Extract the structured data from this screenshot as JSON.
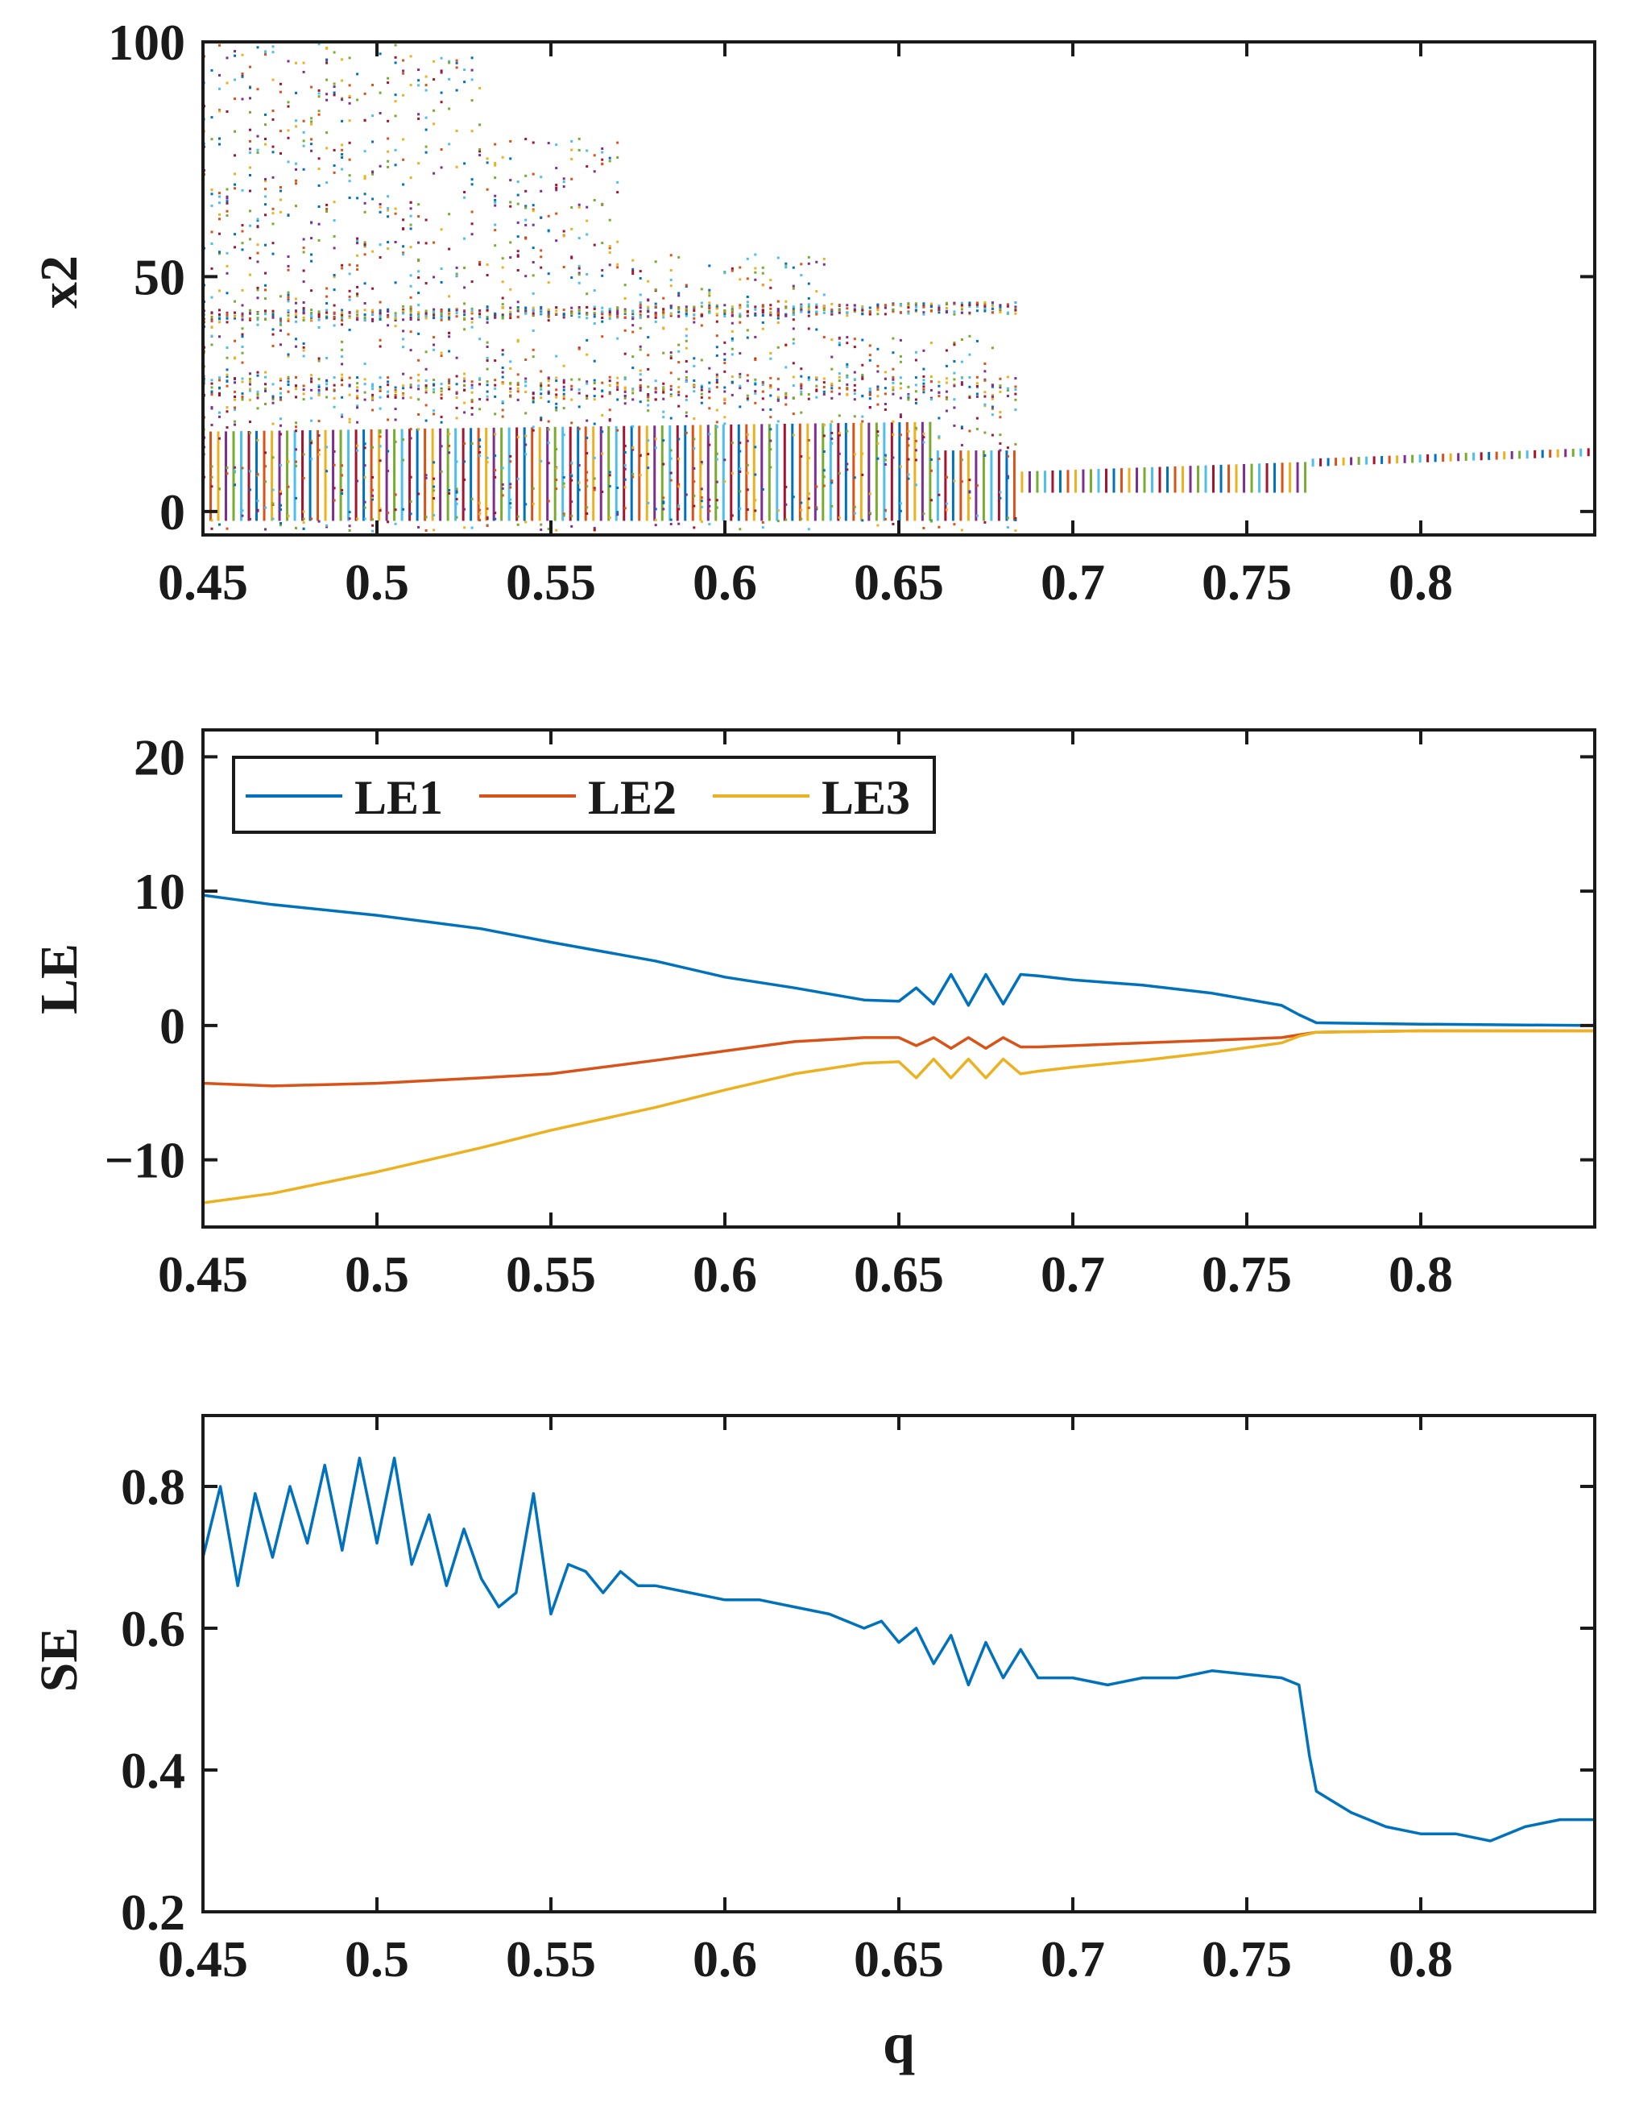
{
  "figure": {
    "xlabel": "q"
  },
  "chart_data": [
    {
      "type": "scatter",
      "title": "",
      "xlabel": "",
      "ylabel": "x2",
      "xlim": [
        0.45,
        0.85
      ],
      "ylim": [
        -5,
        100
      ],
      "xticks": [
        0.45,
        0.5,
        0.55,
        0.6,
        0.65,
        0.7,
        0.75,
        0.8
      ],
      "xtick_labels": [
        "0.45",
        "0.5",
        "0.55",
        "0.6",
        "0.65",
        "0.7",
        "0.75",
        "0.8"
      ],
      "yticks": [
        0,
        50,
        100
      ],
      "ytick_labels": [
        "0",
        "50",
        "100"
      ],
      "grid": false,
      "description_regions": [
        {
          "q_range": [
            0.45,
            0.53
          ],
          "x2_range": [
            -5,
            100
          ],
          "density": "sparse-to-dense chaotic"
        },
        {
          "q_range": [
            0.45,
            0.685
          ],
          "x2_range": [
            -5,
            43
          ],
          "density": "dense chaotic"
        },
        {
          "q_range": [
            0.685,
            0.767
          ],
          "x2_range": [
            4,
            9
          ],
          "density": "periodic band"
        },
        {
          "q_range": [
            0.767,
            0.85
          ],
          "x2_range": [
            10,
            13
          ],
          "density": "periodic band"
        }
      ],
      "series_colors": [
        "#0072BD",
        "#D95319",
        "#EDB120",
        "#7E2F8E",
        "#77AC30",
        "#4DBEEE",
        "#A2142F"
      ]
    },
    {
      "type": "line",
      "title": "",
      "xlabel": "",
      "ylabel": "LE",
      "xlim": [
        0.45,
        0.85
      ],
      "ylim": [
        -15,
        22
      ],
      "xticks": [
        0.45,
        0.5,
        0.55,
        0.6,
        0.65,
        0.7,
        0.75,
        0.8
      ],
      "xtick_labels": [
        "0.45",
        "0.5",
        "0.55",
        "0.6",
        "0.65",
        "0.7",
        "0.75",
        "0.8"
      ],
      "yticks": [
        -10,
        0,
        10,
        20
      ],
      "ytick_labels": [
        "−10",
        "0",
        "10",
        "20"
      ],
      "grid": false,
      "legend": {
        "placement": "top-left",
        "entries": [
          "LE1",
          "LE2",
          "LE3"
        ]
      },
      "x": [
        0.45,
        0.47,
        0.5,
        0.53,
        0.55,
        0.58,
        0.6,
        0.62,
        0.64,
        0.65,
        0.655,
        0.66,
        0.665,
        0.67,
        0.675,
        0.68,
        0.685,
        0.69,
        0.7,
        0.72,
        0.74,
        0.76,
        0.765,
        0.77,
        0.8,
        0.85
      ],
      "series": [
        {
          "name": "LE1",
          "color": "#0072BD",
          "values": [
            9.7,
            9.0,
            8.2,
            7.2,
            6.2,
            4.8,
            3.6,
            2.8,
            1.9,
            1.8,
            2.8,
            1.6,
            3.8,
            1.5,
            3.8,
            1.6,
            3.8,
            3.7,
            3.4,
            3.0,
            2.4,
            1.5,
            0.8,
            0.2,
            0.1,
            0.0
          ]
        },
        {
          "name": "LE2",
          "color": "#D95319",
          "values": [
            -4.3,
            -4.5,
            -4.3,
            -3.9,
            -3.6,
            -2.6,
            -1.9,
            -1.2,
            -0.9,
            -0.9,
            -1.5,
            -0.9,
            -1.7,
            -0.9,
            -1.7,
            -0.9,
            -1.6,
            -1.6,
            -1.5,
            -1.3,
            -1.1,
            -0.9,
            -0.7,
            -0.5,
            -0.4,
            -0.4
          ]
        },
        {
          "name": "LE3",
          "color": "#EDB120",
          "values": [
            -13.2,
            -12.5,
            -10.9,
            -9.1,
            -7.8,
            -6.1,
            -4.8,
            -3.6,
            -2.8,
            -2.7,
            -3.9,
            -2.5,
            -3.9,
            -2.5,
            -3.9,
            -2.5,
            -3.6,
            -3.4,
            -3.1,
            -2.6,
            -2.0,
            -1.3,
            -0.8,
            -0.5,
            -0.4,
            -0.4
          ]
        }
      ]
    },
    {
      "type": "line",
      "title": "",
      "xlabel": "q",
      "ylabel": "SE",
      "xlim": [
        0.45,
        0.85
      ],
      "ylim": [
        0.2,
        0.9
      ],
      "xticks": [
        0.45,
        0.5,
        0.55,
        0.6,
        0.65,
        0.7,
        0.75,
        0.8
      ],
      "xtick_labels": [
        "0.45",
        "0.5",
        "0.55",
        "0.6",
        "0.65",
        "0.7",
        "0.75",
        "0.8"
      ],
      "yticks": [
        0.2,
        0.4,
        0.6,
        0.8
      ],
      "ytick_labels": [
        "0.2",
        "0.4",
        "0.6",
        "0.8"
      ],
      "grid": false,
      "series": [
        {
          "name": "SE",
          "color": "#0072BD",
          "x": [
            0.45,
            0.455,
            0.46,
            0.465,
            0.47,
            0.475,
            0.48,
            0.485,
            0.49,
            0.495,
            0.5,
            0.505,
            0.51,
            0.515,
            0.52,
            0.525,
            0.53,
            0.535,
            0.54,
            0.545,
            0.55,
            0.555,
            0.56,
            0.565,
            0.57,
            0.575,
            0.58,
            0.59,
            0.6,
            0.61,
            0.62,
            0.63,
            0.64,
            0.645,
            0.65,
            0.655,
            0.66,
            0.665,
            0.67,
            0.675,
            0.68,
            0.685,
            0.69,
            0.7,
            0.71,
            0.72,
            0.73,
            0.74,
            0.75,
            0.76,
            0.765,
            0.768,
            0.77,
            0.78,
            0.79,
            0.8,
            0.81,
            0.82,
            0.83,
            0.84,
            0.85
          ],
          "values": [
            0.7,
            0.8,
            0.66,
            0.79,
            0.7,
            0.8,
            0.72,
            0.83,
            0.71,
            0.84,
            0.72,
            0.84,
            0.69,
            0.76,
            0.66,
            0.74,
            0.67,
            0.63,
            0.65,
            0.79,
            0.62,
            0.69,
            0.68,
            0.65,
            0.68,
            0.66,
            0.66,
            0.65,
            0.64,
            0.64,
            0.63,
            0.62,
            0.6,
            0.61,
            0.58,
            0.6,
            0.55,
            0.59,
            0.52,
            0.58,
            0.53,
            0.57,
            0.53,
            0.53,
            0.52,
            0.53,
            0.53,
            0.54,
            0.535,
            0.53,
            0.52,
            0.42,
            0.37,
            0.34,
            0.32,
            0.31,
            0.31,
            0.3,
            0.32,
            0.33,
            0.33
          ]
        }
      ]
    }
  ]
}
